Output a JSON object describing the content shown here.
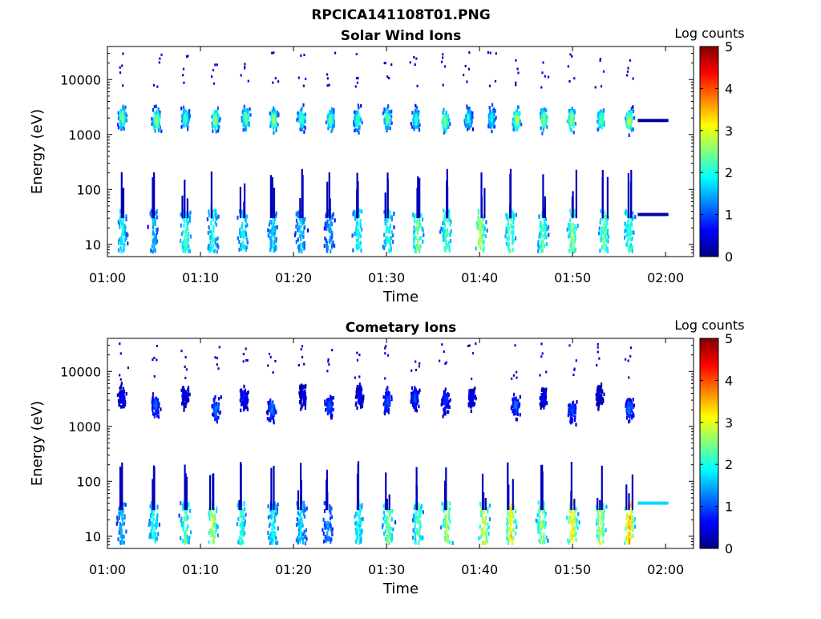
{
  "figure": {
    "title": "RPCICA141108T01.PNG"
  },
  "colorbar": {
    "label": "Log counts",
    "ticks": [
      "0",
      "1",
      "2",
      "3",
      "4",
      "5"
    ],
    "stops": [
      "#000080",
      "#0000ff",
      "#0080ff",
      "#00ffff",
      "#80ff80",
      "#ffff00",
      "#ff8000",
      "#ff0000",
      "#800000"
    ]
  },
  "chart_data": [
    {
      "type": "heatmap",
      "title": "Solar Wind Ions",
      "xlabel": "Time",
      "ylabel": "Energy (eV)",
      "x_ticks": [
        "01:00",
        "01:10",
        "01:20",
        "01:30",
        "01:40",
        "01:50",
        "02:00"
      ],
      "y_ticks": [
        "10",
        "100",
        "1000",
        "10000"
      ],
      "x_range_minutes": [
        0,
        63
      ],
      "y_range": [
        6,
        40000
      ],
      "y_scale": "log",
      "z_label": "Log counts",
      "z_range": [
        0,
        5
      ],
      "bursts": [
        {
          "t": 1.5,
          "e": 2200,
          "z": 2.8
        },
        {
          "t": 5.2,
          "e": 1900,
          "z": 3.0
        },
        {
          "t": 8.3,
          "e": 2100,
          "z": 2.5
        },
        {
          "t": 11.5,
          "e": 2000,
          "z": 3.0
        },
        {
          "t": 14.8,
          "e": 2100,
          "z": 2.8
        },
        {
          "t": 17.8,
          "e": 2000,
          "z": 3.0
        },
        {
          "t": 20.8,
          "e": 2100,
          "z": 2.6
        },
        {
          "t": 23.9,
          "e": 2000,
          "z": 2.7
        },
        {
          "t": 26.8,
          "e": 2000,
          "z": 2.5
        },
        {
          "t": 30.0,
          "e": 2100,
          "z": 2.6
        },
        {
          "t": 33.1,
          "e": 2000,
          "z": 2.4
        },
        {
          "t": 36.2,
          "e": 1900,
          "z": 2.9
        },
        {
          "t": 38.7,
          "e": 2100,
          "z": 2.3
        },
        {
          "t": 41.2,
          "e": 2100,
          "z": 2.2
        },
        {
          "t": 43.9,
          "e": 2000,
          "z": 3.2
        },
        {
          "t": 46.8,
          "e": 2000,
          "z": 3.0
        },
        {
          "t": 49.8,
          "e": 2000,
          "z": 3.1
        },
        {
          "t": 53.0,
          "e": 2000,
          "z": 2.7
        },
        {
          "t": 56.0,
          "e": 1900,
          "z": 3.2
        }
      ],
      "low_energy_clusters": [
        {
          "t": 1.5,
          "z": 2.0
        },
        {
          "t": 4.9,
          "z": 1.6
        },
        {
          "t": 8.3,
          "z": 2.3
        },
        {
          "t": 11.2,
          "z": 2.1
        },
        {
          "t": 14.5,
          "z": 2.0
        },
        {
          "t": 17.7,
          "z": 1.8
        },
        {
          "t": 20.7,
          "z": 1.7
        },
        {
          "t": 23.8,
          "z": 1.5
        },
        {
          "t": 26.9,
          "z": 2.1
        },
        {
          "t": 30.1,
          "z": 2.2
        },
        {
          "t": 33.3,
          "z": 2.6
        },
        {
          "t": 36.4,
          "z": 2.4
        },
        {
          "t": 40.0,
          "z": 2.9
        },
        {
          "t": 43.2,
          "z": 2.5
        },
        {
          "t": 46.7,
          "z": 2.4
        },
        {
          "t": 49.9,
          "z": 2.6
        },
        {
          "t": 53.3,
          "z": 2.5
        },
        {
          "t": 56.0,
          "z": 2.3
        }
      ],
      "fill_lines": [
        {
          "t_start": 57.0,
          "t_end": 60.3,
          "e": 1800,
          "z": 0.2
        },
        {
          "t_start": 57.0,
          "t_end": 60.3,
          "e": 35,
          "z": 0.2
        }
      ]
    },
    {
      "type": "heatmap",
      "title": "Cometary Ions",
      "xlabel": "Time",
      "ylabel": "Energy (eV)",
      "x_ticks": [
        "01:00",
        "01:10",
        "01:20",
        "01:30",
        "01:40",
        "01:50",
        "02:00"
      ],
      "y_ticks": [
        "10",
        "100",
        "1000",
        "10000"
      ],
      "x_range_minutes": [
        0,
        63
      ],
      "y_range": [
        6,
        40000
      ],
      "y_scale": "log",
      "z_label": "Log counts",
      "z_range": [
        0,
        5
      ],
      "bursts": [
        {
          "t": 1.5,
          "e": 3500,
          "z": 0.6
        },
        {
          "t": 5.1,
          "e": 2500,
          "z": 1.2
        },
        {
          "t": 8.3,
          "e": 3800,
          "z": 0.6
        },
        {
          "t": 11.6,
          "e": 2200,
          "z": 1.3
        },
        {
          "t": 14.6,
          "e": 3500,
          "z": 0.8
        },
        {
          "t": 17.6,
          "e": 2200,
          "z": 1.4
        },
        {
          "t": 20.9,
          "e": 3800,
          "z": 0.6
        },
        {
          "t": 23.8,
          "e": 2500,
          "z": 1.1
        },
        {
          "t": 27.0,
          "e": 3800,
          "z": 0.7
        },
        {
          "t": 30.0,
          "e": 3000,
          "z": 1.2
        },
        {
          "t": 33.0,
          "e": 3500,
          "z": 1.0
        },
        {
          "t": 36.3,
          "e": 3000,
          "z": 1.0
        },
        {
          "t": 39.0,
          "e": 3500,
          "z": 0.6
        },
        {
          "t": 43.8,
          "e": 2500,
          "z": 1.2
        },
        {
          "t": 46.8,
          "e": 3500,
          "z": 0.6
        },
        {
          "t": 49.9,
          "e": 2000,
          "z": 1.1
        },
        {
          "t": 52.8,
          "e": 3800,
          "z": 0.5
        },
        {
          "t": 56.0,
          "e": 2200,
          "z": 1.3
        }
      ],
      "low_energy_clusters": [
        {
          "t": 1.5,
          "z": 1.6
        },
        {
          "t": 4.9,
          "z": 2.1
        },
        {
          "t": 8.3,
          "z": 2.4
        },
        {
          "t": 11.2,
          "z": 2.9
        },
        {
          "t": 14.3,
          "z": 2.2
        },
        {
          "t": 17.7,
          "z": 2.0
        },
        {
          "t": 20.7,
          "z": 1.8
        },
        {
          "t": 23.6,
          "z": 1.4
        },
        {
          "t": 26.9,
          "z": 2.1
        },
        {
          "t": 30.1,
          "z": 2.6
        },
        {
          "t": 33.3,
          "z": 2.4
        },
        {
          "t": 36.4,
          "z": 2.8
        },
        {
          "t": 40.4,
          "z": 3.1
        },
        {
          "t": 43.3,
          "z": 3.3
        },
        {
          "t": 46.6,
          "z": 2.8
        },
        {
          "t": 49.9,
          "z": 3.3
        },
        {
          "t": 52.9,
          "z": 3.0
        },
        {
          "t": 56.0,
          "z": 3.6
        }
      ],
      "fill_lines": [
        {
          "t_start": 57.0,
          "t_end": 60.3,
          "e": 40,
          "z": 1.7
        }
      ]
    }
  ]
}
